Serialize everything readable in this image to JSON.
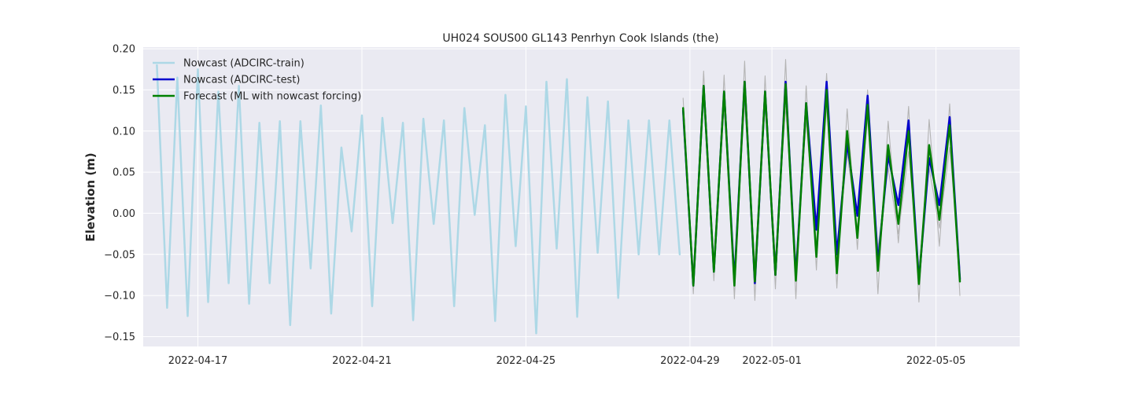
{
  "chart_data": {
    "type": "line",
    "title": "UH024 SOUS00 GL143 Penrhyn Cook Islands (the)",
    "xlabel": "",
    "ylabel": "Elevation (m)",
    "x_type": "date",
    "xlim": [
      "2022-04-15T16:00",
      "2022-05-07T01:00"
    ],
    "ylim": [
      -0.162,
      0.202
    ],
    "x_ticks": [
      "2022-04-17",
      "2022-04-21",
      "2022-04-25",
      "2022-04-29",
      "2022-05-01",
      "2022-05-05"
    ],
    "y_ticks": [
      -0.15,
      -0.1,
      -0.05,
      0.0,
      0.05,
      0.1,
      0.15,
      0.2
    ],
    "y_tick_labels": [
      "−0.15",
      "−0.10",
      "−0.05",
      "0.00",
      "0.05",
      "0.10",
      "0.15",
      "0.20"
    ],
    "grid": true,
    "legend_position": "top-left",
    "colors": {
      "background": "#eaeaf2",
      "grid": "#ffffff",
      "train": "#add8e6",
      "test": "#0000cd",
      "forecast": "#008000",
      "envelope": "#b4b4b4"
    },
    "series": [
      {
        "name": "Nowcast (ADCIRC-train)",
        "color": "#add8e6",
        "x": [
          "2022-04-16T00:00",
          "2022-04-16T06:00",
          "2022-04-16T12:00",
          "2022-04-16T18:00",
          "2022-04-17T00:00",
          "2022-04-17T06:00",
          "2022-04-17T12:00",
          "2022-04-17T18:00",
          "2022-04-18T00:00",
          "2022-04-18T06:00",
          "2022-04-18T12:00",
          "2022-04-18T18:00",
          "2022-04-19T00:00",
          "2022-04-19T06:00",
          "2022-04-19T12:00",
          "2022-04-19T18:00",
          "2022-04-20T00:00",
          "2022-04-20T06:00",
          "2022-04-20T12:00",
          "2022-04-20T18:00",
          "2022-04-21T00:00",
          "2022-04-21T06:00",
          "2022-04-21T12:00",
          "2022-04-21T18:00",
          "2022-04-22T00:00",
          "2022-04-22T06:00",
          "2022-04-22T12:00",
          "2022-04-22T18:00",
          "2022-04-23T00:00",
          "2022-04-23T06:00",
          "2022-04-23T12:00",
          "2022-04-23T18:00",
          "2022-04-24T00:00",
          "2022-04-24T06:00",
          "2022-04-24T12:00",
          "2022-04-24T18:00",
          "2022-04-25T00:00",
          "2022-04-25T06:00",
          "2022-04-25T12:00",
          "2022-04-25T18:00",
          "2022-04-26T00:00",
          "2022-04-26T06:00",
          "2022-04-26T12:00",
          "2022-04-26T18:00",
          "2022-04-27T00:00",
          "2022-04-27T06:00",
          "2022-04-27T12:00",
          "2022-04-27T18:00",
          "2022-04-28T00:00",
          "2022-04-28T06:00",
          "2022-04-28T12:00",
          "2022-04-28T18:00"
        ],
        "values": [
          0.18,
          -0.115,
          0.165,
          -0.125,
          0.175,
          -0.108,
          0.148,
          -0.085,
          0.155,
          -0.11,
          0.11,
          -0.085,
          0.112,
          -0.136,
          0.112,
          -0.067,
          0.131,
          -0.122,
          0.08,
          -0.022,
          0.119,
          -0.113,
          0.116,
          -0.012,
          0.11,
          -0.13,
          0.115,
          -0.013,
          0.113,
          -0.113,
          0.128,
          -0.002,
          0.107,
          -0.131,
          0.144,
          -0.04,
          0.13,
          -0.146,
          0.16,
          -0.043,
          0.163,
          -0.126,
          0.141,
          -0.048,
          0.136,
          -0.103,
          0.113,
          -0.05,
          0.113,
          -0.05,
          0.113,
          -0.05
        ]
      },
      {
        "name": "Nowcast (ADCIRC-test)",
        "color": "#0000cd",
        "x": [
          "2022-04-28T20:00",
          "2022-04-29T02:00",
          "2022-04-29T08:00",
          "2022-04-29T14:00",
          "2022-04-29T20:00",
          "2022-04-30T02:00",
          "2022-04-30T08:00",
          "2022-04-30T14:00",
          "2022-04-30T20:00",
          "2022-05-01T02:00",
          "2022-05-01T08:00",
          "2022-05-01T14:00",
          "2022-05-01T20:00",
          "2022-05-02T02:00",
          "2022-05-02T08:00",
          "2022-05-02T14:00",
          "2022-05-02T20:00",
          "2022-05-03T02:00",
          "2022-05-03T08:00",
          "2022-05-03T14:00",
          "2022-05-03T20:00",
          "2022-05-04T02:00",
          "2022-05-04T08:00",
          "2022-05-04T14:00",
          "2022-05-04T20:00",
          "2022-05-05T02:00",
          "2022-05-05T08:00",
          "2022-05-05T14:00"
        ],
        "values": [
          0.125,
          -0.088,
          0.155,
          -0.071,
          0.148,
          -0.082,
          0.16,
          -0.085,
          0.148,
          -0.075,
          0.16,
          -0.077,
          0.134,
          -0.02,
          0.16,
          -0.05,
          0.085,
          -0.003,
          0.143,
          -0.06,
          0.07,
          0.01,
          0.113,
          -0.082,
          0.067,
          0.01,
          0.117,
          -0.08
        ]
      },
      {
        "name": "Forecast (ML with nowcast forcing)",
        "color": "#008000",
        "x": [
          "2022-04-28T20:00",
          "2022-04-29T02:00",
          "2022-04-29T08:00",
          "2022-04-29T14:00",
          "2022-04-29T20:00",
          "2022-04-30T02:00",
          "2022-04-30T08:00",
          "2022-04-30T14:00",
          "2022-04-30T20:00",
          "2022-05-01T02:00",
          "2022-05-01T08:00",
          "2022-05-01T14:00",
          "2022-05-01T20:00",
          "2022-05-02T02:00",
          "2022-05-02T08:00",
          "2022-05-02T14:00",
          "2022-05-02T20:00",
          "2022-05-03T02:00",
          "2022-05-03T08:00",
          "2022-05-03T14:00",
          "2022-05-03T20:00",
          "2022-05-04T02:00",
          "2022-05-04T08:00",
          "2022-05-04T14:00",
          "2022-05-04T20:00",
          "2022-05-05T02:00",
          "2022-05-05T08:00",
          "2022-05-05T14:00"
        ],
        "values": [
          0.128,
          -0.088,
          0.155,
          -0.071,
          0.148,
          -0.088,
          0.16,
          -0.083,
          0.148,
          -0.075,
          0.157,
          -0.082,
          0.134,
          -0.053,
          0.15,
          -0.073,
          0.1,
          -0.03,
          0.132,
          -0.07,
          0.083,
          -0.013,
          0.1,
          -0.086,
          0.083,
          -0.008,
          0.107,
          -0.083
        ]
      },
      {
        "name": "",
        "color": "#b4b4b4",
        "x": [
          "2022-04-28T20:00",
          "2022-04-29T02:00",
          "2022-04-29T08:00",
          "2022-04-29T14:00",
          "2022-04-29T20:00",
          "2022-04-30T02:00",
          "2022-04-30T08:00",
          "2022-04-30T14:00",
          "2022-04-30T20:00",
          "2022-05-01T02:00",
          "2022-05-01T08:00",
          "2022-05-01T14:00",
          "2022-05-01T20:00",
          "2022-05-02T02:00",
          "2022-05-02T08:00",
          "2022-05-02T14:00",
          "2022-05-02T20:00",
          "2022-05-03T02:00",
          "2022-05-03T08:00",
          "2022-05-03T14:00",
          "2022-05-03T20:00",
          "2022-05-04T02:00",
          "2022-05-04T08:00",
          "2022-05-04T14:00",
          "2022-05-04T20:00",
          "2022-05-05T02:00",
          "2022-05-05T08:00",
          "2022-05-05T14:00"
        ],
        "values": [
          0.14,
          -0.098,
          0.173,
          -0.082,
          0.168,
          -0.104,
          0.185,
          -0.106,
          0.167,
          -0.092,
          0.187,
          -0.104,
          0.155,
          -0.069,
          0.17,
          -0.091,
          0.127,
          -0.044,
          0.15,
          -0.098,
          0.112,
          -0.036,
          0.13,
          -0.108,
          0.114,
          -0.04,
          0.133,
          -0.1
        ]
      },
      {
        "name": "",
        "color": "#b4b4b4",
        "x": [
          "2022-04-28T20:00",
          "2022-04-29T02:00",
          "2022-04-29T08:00",
          "2022-04-29T14:00",
          "2022-04-29T20:00",
          "2022-04-30T02:00",
          "2022-04-30T08:00",
          "2022-04-30T14:00",
          "2022-04-30T20:00",
          "2022-05-01T02:00",
          "2022-05-01T08:00",
          "2022-05-01T14:00",
          "2022-05-01T20:00",
          "2022-05-02T02:00",
          "2022-05-02T08:00",
          "2022-05-02T14:00",
          "2022-05-02T20:00",
          "2022-05-03T02:00",
          "2022-05-03T08:00",
          "2022-05-03T14:00",
          "2022-05-03T20:00",
          "2022-05-04T02:00",
          "2022-05-04T08:00",
          "2022-05-04T14:00",
          "2022-05-04T20:00",
          "2022-05-05T02:00",
          "2022-05-05T08:00",
          "2022-05-05T14:00"
        ],
        "values": [
          0.11,
          -0.072,
          0.14,
          -0.064,
          0.128,
          -0.071,
          0.133,
          -0.061,
          0.127,
          -0.056,
          0.13,
          -0.06,
          0.112,
          -0.038,
          0.13,
          -0.055,
          0.073,
          -0.018,
          0.115,
          -0.043,
          0.055,
          -0.025,
          0.075,
          -0.066,
          0.055,
          -0.018,
          0.08,
          -0.066
        ]
      }
    ]
  }
}
